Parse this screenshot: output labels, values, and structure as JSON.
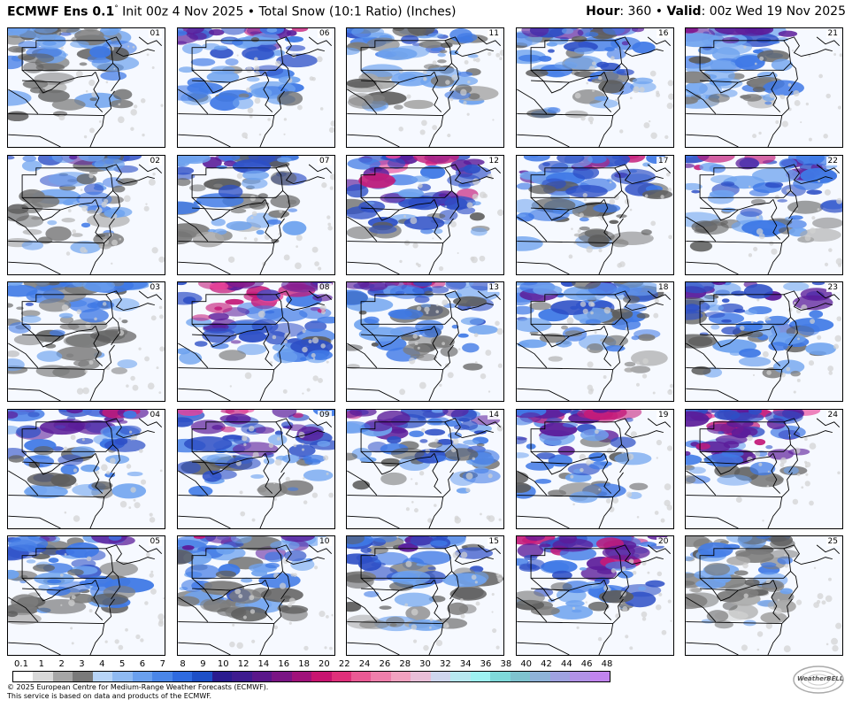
{
  "header": {
    "model": "ECMWF Ens 0.1",
    "degree": "°",
    "subtitle": "Init 00z 4 Nov 2025 • Total Snow (10:1 Ratio) (Inches)",
    "hour_label": "Hour",
    "hour_value": ": 360 • ",
    "valid_label": "Valid",
    "valid_value": ": 00z Wed 19 Nov 2025"
  },
  "panels": [
    {
      "member": "01",
      "intensity": 0.35,
      "north": 0.55,
      "west": 0.5
    },
    {
      "member": "06",
      "intensity": 0.6,
      "north": 0.75,
      "west": 0.55
    },
    {
      "member": "11",
      "intensity": 0.4,
      "north": 0.7,
      "west": 0.6
    },
    {
      "member": "16",
      "intensity": 0.55,
      "north": 0.65,
      "west": 0.6
    },
    {
      "member": "21",
      "intensity": 0.6,
      "north": 0.8,
      "west": 0.4
    },
    {
      "member": "02",
      "intensity": 0.45,
      "north": 0.55,
      "west": 0.55
    },
    {
      "member": "07",
      "intensity": 0.5,
      "north": 0.65,
      "west": 0.5
    },
    {
      "member": "12",
      "intensity": 0.85,
      "north": 0.8,
      "west": 0.7
    },
    {
      "member": "17",
      "intensity": 0.65,
      "north": 0.6,
      "west": 0.75
    },
    {
      "member": "22",
      "intensity": 0.7,
      "north": 0.55,
      "west": 0.8
    },
    {
      "member": "03",
      "intensity": 0.4,
      "north": 0.5,
      "west": 0.55
    },
    {
      "member": "08",
      "intensity": 0.95,
      "north": 0.8,
      "west": 0.85
    },
    {
      "member": "13",
      "intensity": 0.6,
      "north": 0.65,
      "west": 0.7
    },
    {
      "member": "18",
      "intensity": 0.5,
      "north": 0.6,
      "west": 0.65
    },
    {
      "member": "23",
      "intensity": 0.6,
      "north": 0.5,
      "west": 0.7
    },
    {
      "member": "04",
      "intensity": 0.75,
      "north": 0.7,
      "west": 0.6
    },
    {
      "member": "09",
      "intensity": 0.8,
      "north": 0.65,
      "west": 0.8
    },
    {
      "member": "14",
      "intensity": 0.65,
      "north": 0.7,
      "west": 0.7
    },
    {
      "member": "19",
      "intensity": 0.7,
      "north": 0.6,
      "west": 0.6
    },
    {
      "member": "24",
      "intensity": 0.85,
      "north": 0.9,
      "west": 0.55
    },
    {
      "member": "05",
      "intensity": 0.5,
      "north": 0.6,
      "west": 0.55
    },
    {
      "member": "10",
      "intensity": 0.6,
      "north": 0.7,
      "west": 0.65
    },
    {
      "member": "15",
      "intensity": 0.5,
      "north": 0.55,
      "west": 0.7
    },
    {
      "member": "20",
      "intensity": 0.8,
      "north": 0.75,
      "west": 0.75
    },
    {
      "member": "25",
      "intensity": 0.3,
      "north": 0.5,
      "west": 0.35
    }
  ],
  "legend": {
    "labels": [
      "0.1",
      "1",
      "2",
      "3",
      "4",
      "5",
      "6",
      "7",
      "8",
      "9",
      "10",
      "12",
      "14",
      "16",
      "18",
      "20",
      "22",
      "24",
      "26",
      "28",
      "30",
      "32",
      "34",
      "36",
      "38",
      "40",
      "42",
      "44",
      "46",
      "48"
    ],
    "colors": [
      "#ffffff",
      "#d9d9d9",
      "#a6a6a6",
      "#7a7a7a",
      "#b7d4f7",
      "#8fbaf2",
      "#6aa0ee",
      "#4a86e8",
      "#2f6be0",
      "#1d4fc7",
      "#2a1b8f",
      "#3e1b8f",
      "#5a178a",
      "#7a1584",
      "#a0127a",
      "#c81470",
      "#e0307a",
      "#ea5a94",
      "#ef7fab",
      "#f2a2c0",
      "#e9bfd8",
      "#cfd6ee",
      "#b7e8f0",
      "#9ef2f2",
      "#7fd9da",
      "#7fc3cf",
      "#8fb3d9",
      "#9fa2e0",
      "#b192e6",
      "#c184ee"
    ]
  },
  "footer": {
    "copyright": "© 2025 European Centre for Medium-Range Weather Forecasts (ECMWF).",
    "service": "This service is based on data and products of the ECMWF."
  },
  "logo": {
    "text": "WeatherBELL"
  }
}
